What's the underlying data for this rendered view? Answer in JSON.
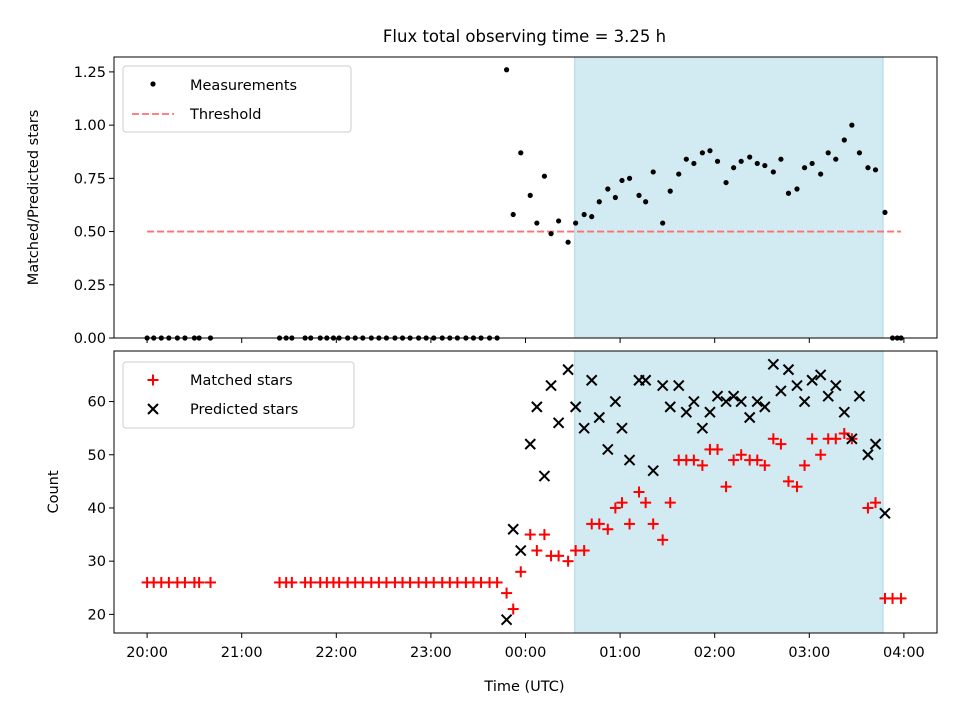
{
  "colors": {
    "observing_band": "#add8e6",
    "threshold": "#ff7070",
    "measurement": "#000000",
    "matched": "#ff0000",
    "predicted": "#000000"
  },
  "chart_data": [
    {
      "type": "scatter",
      "title": "Flux total observing time = 3.25 h",
      "xlabel": "",
      "ylabel": "Matched/Predicted stars",
      "x_unit": "hours since 00:00 UTC",
      "xlim": [
        -4.35,
        4.35
      ],
      "ylim": [
        0,
        1.32
      ],
      "yticks": [
        0.0,
        0.25,
        0.5,
        0.75,
        1.0,
        1.25
      ],
      "ytick_labels": [
        "0.00",
        "0.25",
        "0.50",
        "0.75",
        "1.00",
        "1.25"
      ],
      "observing_band": [
        0.52,
        3.78
      ],
      "legend": {
        "position": "top-left",
        "entries": [
          "Measurements",
          "Threshold"
        ]
      },
      "threshold": {
        "name": "Threshold",
        "y": 0.5,
        "x_range": [
          -4.0,
          3.97
        ]
      },
      "series": [
        {
          "name": "Measurements",
          "marker": "dot",
          "points": [
            [
              -4.0,
              0
            ],
            [
              -3.93,
              0
            ],
            [
              -3.85,
              0
            ],
            [
              -3.77,
              0
            ],
            [
              -3.68,
              0
            ],
            [
              -3.6,
              0
            ],
            [
              -3.5,
              0
            ],
            [
              -3.45,
              0
            ],
            [
              -3.33,
              0
            ],
            [
              -2.6,
              0
            ],
            [
              -2.53,
              0
            ],
            [
              -2.47,
              0
            ],
            [
              -2.33,
              0
            ],
            [
              -2.27,
              0
            ],
            [
              -2.17,
              0
            ],
            [
              -2.1,
              0
            ],
            [
              -2.03,
              0
            ],
            [
              -1.97,
              0
            ],
            [
              -1.88,
              0
            ],
            [
              -1.8,
              0
            ],
            [
              -1.72,
              0
            ],
            [
              -1.63,
              0
            ],
            [
              -1.55,
              0
            ],
            [
              -1.47,
              0
            ],
            [
              -1.38,
              0
            ],
            [
              -1.3,
              0
            ],
            [
              -1.22,
              0
            ],
            [
              -1.13,
              0
            ],
            [
              -1.05,
              0
            ],
            [
              -0.97,
              0
            ],
            [
              -0.88,
              0
            ],
            [
              -0.8,
              0
            ],
            [
              -0.72,
              0
            ],
            [
              -0.63,
              0
            ],
            [
              -0.55,
              0
            ],
            [
              -0.47,
              0
            ],
            [
              -0.38,
              0
            ],
            [
              -0.3,
              0
            ],
            [
              -0.2,
              1.26
            ],
            [
              -0.13,
              0.58
            ],
            [
              -0.05,
              0.87
            ],
            [
              0.05,
              0.67
            ],
            [
              0.12,
              0.54
            ],
            [
              0.2,
              0.76
            ],
            [
              0.27,
              0.49
            ],
            [
              0.35,
              0.55
            ],
            [
              0.45,
              0.45
            ],
            [
              0.53,
              0.54
            ],
            [
              0.62,
              0.58
            ],
            [
              0.7,
              0.57
            ],
            [
              0.78,
              0.64
            ],
            [
              0.87,
              0.7
            ],
            [
              0.95,
              0.66
            ],
            [
              1.02,
              0.74
            ],
            [
              1.1,
              0.75
            ],
            [
              1.2,
              0.67
            ],
            [
              1.27,
              0.64
            ],
            [
              1.35,
              0.78
            ],
            [
              1.45,
              0.54
            ],
            [
              1.53,
              0.69
            ],
            [
              1.62,
              0.77
            ],
            [
              1.7,
              0.84
            ],
            [
              1.78,
              0.82
            ],
            [
              1.87,
              0.87
            ],
            [
              1.95,
              0.88
            ],
            [
              2.03,
              0.83
            ],
            [
              2.12,
              0.73
            ],
            [
              2.2,
              0.8
            ],
            [
              2.28,
              0.83
            ],
            [
              2.37,
              0.85
            ],
            [
              2.45,
              0.82
            ],
            [
              2.53,
              0.81
            ],
            [
              2.62,
              0.78
            ],
            [
              2.7,
              0.84
            ],
            [
              2.78,
              0.68
            ],
            [
              2.87,
              0.7
            ],
            [
              2.95,
              0.8
            ],
            [
              3.03,
              0.82
            ],
            [
              3.12,
              0.77
            ],
            [
              3.2,
              0.87
            ],
            [
              3.28,
              0.84
            ],
            [
              3.37,
              0.93
            ],
            [
              3.45,
              1.0
            ],
            [
              3.53,
              0.87
            ],
            [
              3.62,
              0.8
            ],
            [
              3.7,
              0.79
            ],
            [
              3.8,
              0.59
            ],
            [
              3.88,
              0
            ],
            [
              3.93,
              0
            ],
            [
              3.97,
              0
            ]
          ]
        }
      ]
    },
    {
      "type": "scatter",
      "title": "",
      "xlabel": "Time (UTC)",
      "ylabel": "Count",
      "x_unit": "hours since 00:00 UTC",
      "xlim": [
        -4.35,
        4.35
      ],
      "ylim": [
        16.5,
        69.5
      ],
      "yticks": [
        20,
        30,
        40,
        50,
        60
      ],
      "ytick_labels": [
        "20",
        "30",
        "40",
        "50",
        "60"
      ],
      "xticks": [
        -4,
        -3,
        -2,
        -1,
        0,
        1,
        2,
        3,
        4
      ],
      "xtick_labels": [
        "20:00",
        "21:00",
        "22:00",
        "23:00",
        "00:00",
        "01:00",
        "02:00",
        "03:00",
        "04:00"
      ],
      "observing_band": [
        0.52,
        3.78
      ],
      "legend": {
        "position": "top-left",
        "entries": [
          "Matched stars",
          "Predicted stars"
        ]
      },
      "series": [
        {
          "name": "Matched stars",
          "marker": "plus",
          "points": [
            [
              -4.0,
              26
            ],
            [
              -3.93,
              26
            ],
            [
              -3.85,
              26
            ],
            [
              -3.77,
              26
            ],
            [
              -3.68,
              26
            ],
            [
              -3.6,
              26
            ],
            [
              -3.5,
              26
            ],
            [
              -3.45,
              26
            ],
            [
              -3.33,
              26
            ],
            [
              -2.6,
              26
            ],
            [
              -2.53,
              26
            ],
            [
              -2.47,
              26
            ],
            [
              -2.33,
              26
            ],
            [
              -2.27,
              26
            ],
            [
              -2.17,
              26
            ],
            [
              -2.1,
              26
            ],
            [
              -2.03,
              26
            ],
            [
              -1.97,
              26
            ],
            [
              -1.88,
              26
            ],
            [
              -1.8,
              26
            ],
            [
              -1.72,
              26
            ],
            [
              -1.63,
              26
            ],
            [
              -1.55,
              26
            ],
            [
              -1.47,
              26
            ],
            [
              -1.38,
              26
            ],
            [
              -1.3,
              26
            ],
            [
              -1.22,
              26
            ],
            [
              -1.13,
              26
            ],
            [
              -1.05,
              26
            ],
            [
              -0.97,
              26
            ],
            [
              -0.88,
              26
            ],
            [
              -0.8,
              26
            ],
            [
              -0.72,
              26
            ],
            [
              -0.63,
              26
            ],
            [
              -0.55,
              26
            ],
            [
              -0.47,
              26
            ],
            [
              -0.38,
              26
            ],
            [
              -0.3,
              26
            ],
            [
              -0.2,
              24
            ],
            [
              -0.13,
              21
            ],
            [
              -0.05,
              28
            ],
            [
              0.05,
              35
            ],
            [
              0.12,
              32
            ],
            [
              0.2,
              35
            ],
            [
              0.27,
              31
            ],
            [
              0.35,
              31
            ],
            [
              0.45,
              30
            ],
            [
              0.53,
              32
            ],
            [
              0.62,
              32
            ],
            [
              0.7,
              37
            ],
            [
              0.78,
              37
            ],
            [
              0.87,
              36
            ],
            [
              0.95,
              40
            ],
            [
              1.02,
              41
            ],
            [
              1.1,
              37
            ],
            [
              1.2,
              43
            ],
            [
              1.27,
              41
            ],
            [
              1.35,
              37
            ],
            [
              1.45,
              34
            ],
            [
              1.53,
              41
            ],
            [
              1.62,
              49
            ],
            [
              1.7,
              49
            ],
            [
              1.78,
              49
            ],
            [
              1.87,
              48
            ],
            [
              1.95,
              51
            ],
            [
              2.03,
              51
            ],
            [
              2.12,
              44
            ],
            [
              2.2,
              49
            ],
            [
              2.28,
              50
            ],
            [
              2.37,
              49
            ],
            [
              2.45,
              49
            ],
            [
              2.53,
              48
            ],
            [
              2.62,
              53
            ],
            [
              2.7,
              52
            ],
            [
              2.78,
              45
            ],
            [
              2.87,
              44
            ],
            [
              2.95,
              48
            ],
            [
              3.03,
              53
            ],
            [
              3.12,
              50
            ],
            [
              3.2,
              53
            ],
            [
              3.28,
              53
            ],
            [
              3.37,
              54
            ],
            [
              3.45,
              53
            ],
            [
              3.62,
              40
            ],
            [
              3.7,
              41
            ],
            [
              3.8,
              23
            ],
            [
              3.88,
              23
            ],
            [
              3.97,
              23
            ]
          ]
        },
        {
          "name": "Predicted stars",
          "marker": "x",
          "points": [
            [
              -0.2,
              19
            ],
            [
              -0.13,
              36
            ],
            [
              -0.05,
              32
            ],
            [
              0.05,
              52
            ],
            [
              0.12,
              59
            ],
            [
              0.2,
              46
            ],
            [
              0.27,
              63
            ],
            [
              0.35,
              56
            ],
            [
              0.45,
              66
            ],
            [
              0.53,
              59
            ],
            [
              0.62,
              55
            ],
            [
              0.7,
              64
            ],
            [
              0.78,
              57
            ],
            [
              0.87,
              51
            ],
            [
              0.95,
              60
            ],
            [
              1.02,
              55
            ],
            [
              1.1,
              49
            ],
            [
              1.2,
              64
            ],
            [
              1.27,
              64
            ],
            [
              1.35,
              47
            ],
            [
              1.45,
              63
            ],
            [
              1.53,
              59
            ],
            [
              1.62,
              63
            ],
            [
              1.7,
              58
            ],
            [
              1.78,
              60
            ],
            [
              1.87,
              55
            ],
            [
              1.95,
              58
            ],
            [
              2.03,
              61
            ],
            [
              2.12,
              60
            ],
            [
              2.2,
              61
            ],
            [
              2.28,
              60
            ],
            [
              2.37,
              57
            ],
            [
              2.45,
              60
            ],
            [
              2.53,
              59
            ],
            [
              2.62,
              67
            ],
            [
              2.7,
              62
            ],
            [
              2.78,
              66
            ],
            [
              2.87,
              63
            ],
            [
              2.95,
              60
            ],
            [
              3.03,
              64
            ],
            [
              3.12,
              65
            ],
            [
              3.2,
              61
            ],
            [
              3.28,
              63
            ],
            [
              3.37,
              58
            ],
            [
              3.45,
              53
            ],
            [
              3.53,
              61
            ],
            [
              3.62,
              50
            ],
            [
              3.7,
              52
            ],
            [
              3.8,
              39
            ]
          ]
        }
      ]
    }
  ]
}
